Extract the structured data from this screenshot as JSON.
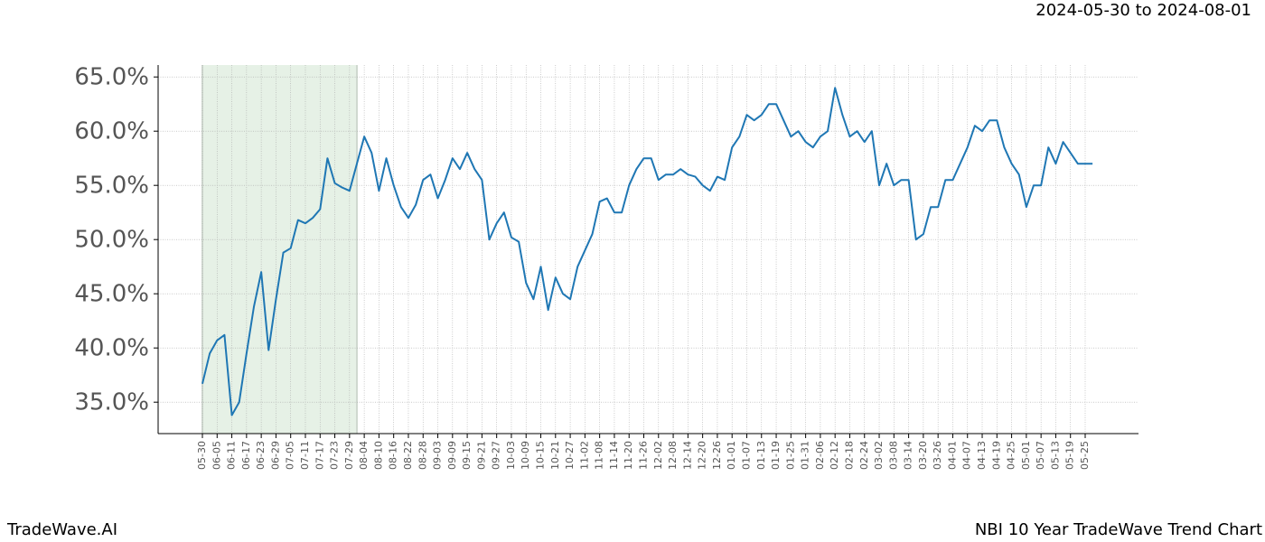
{
  "chart_data": {
    "type": "line",
    "date_range": "2024-05-30 to 2024-08-01",
    "brand": "TradeWave.AI",
    "title": "NBI 10 Year TradeWave Trend Chart",
    "x": [
      "05-30",
      "06-02",
      "06-05",
      "06-08",
      "06-11",
      "06-14",
      "06-17",
      "06-20",
      "06-23",
      "06-26",
      "06-29",
      "07-02",
      "07-05",
      "07-08",
      "07-11",
      "07-14",
      "07-17",
      "07-20",
      "07-23",
      "07-26",
      "07-29",
      "08-01",
      "08-04",
      "08-07",
      "08-10",
      "08-13",
      "08-16",
      "08-19",
      "08-22",
      "08-25",
      "08-28",
      "08-31",
      "09-03",
      "09-06",
      "09-09",
      "09-12",
      "09-15",
      "09-18",
      "09-21",
      "09-24",
      "09-27",
      "09-30",
      "10-03",
      "10-06",
      "10-09",
      "10-12",
      "10-15",
      "10-18",
      "10-21",
      "10-24",
      "10-27",
      "10-30",
      "11-02",
      "11-05",
      "11-08",
      "11-11",
      "11-14",
      "11-17",
      "11-20",
      "11-23",
      "11-26",
      "11-29",
      "12-02",
      "12-05",
      "12-08",
      "12-11",
      "12-14",
      "12-17",
      "12-20",
      "12-23",
      "12-26",
      "12-29",
      "01-01",
      "01-04",
      "01-07",
      "01-10",
      "01-13",
      "01-16",
      "01-19",
      "01-22",
      "01-25",
      "01-28",
      "01-31",
      "02-03",
      "02-06",
      "02-09",
      "02-12",
      "02-15",
      "02-18",
      "02-21",
      "02-24",
      "02-27",
      "03-02",
      "03-05",
      "03-08",
      "03-11",
      "03-14",
      "03-17",
      "03-20",
      "03-23",
      "03-26",
      "03-29",
      "04-01",
      "04-04",
      "04-07",
      "04-10",
      "04-13",
      "04-16",
      "04-19",
      "04-22",
      "04-25",
      "04-28",
      "05-01",
      "05-04",
      "05-07",
      "05-10",
      "05-13",
      "05-16",
      "05-19",
      "05-22",
      "05-25",
      "05-28"
    ],
    "series": [
      {
        "color": "#1f77b4",
        "values": [
          36.7,
          39.5,
          40.7,
          41.2,
          33.8,
          35.0,
          39.5,
          43.8,
          47.0,
          39.8,
          44.5,
          48.8,
          49.2,
          51.8,
          51.5,
          52.0,
          52.8,
          57.5,
          55.2,
          54.8,
          54.5,
          57.0,
          59.5,
          58.0,
          54.5,
          57.5,
          55.0,
          53.0,
          52.0,
          53.2,
          55.5,
          56.0,
          53.8,
          55.5,
          57.5,
          56.5,
          58.0,
          56.5,
          55.5,
          50.0,
          51.5,
          52.5,
          50.2,
          49.8,
          46.0,
          44.5,
          47.5,
          43.5,
          46.5,
          45.0,
          44.5,
          47.5,
          49.0,
          50.5,
          53.5,
          53.8,
          52.5,
          52.5,
          55.0,
          56.5,
          57.5,
          57.5,
          55.5,
          56.0,
          56.0,
          56.5,
          56.0,
          55.8,
          55.0,
          54.5,
          55.8,
          55.5,
          58.5,
          59.5,
          61.5,
          61.0,
          61.5,
          62.5,
          62.5,
          61.0,
          59.5,
          60.0,
          59.0,
          58.5,
          59.5,
          60.0,
          64.0,
          61.5,
          59.5,
          60.0,
          59.0,
          60.0,
          55.0,
          57.0,
          55.0,
          55.5,
          55.5,
          50.0,
          50.5,
          53.0,
          53.0,
          55.5,
          55.5,
          57.0,
          58.5,
          60.5,
          60.0,
          61.0,
          61.0,
          58.5,
          57.0,
          56.0,
          53.0,
          55.0,
          55.0,
          58.5,
          57.0,
          59.0,
          58.0,
          57.0,
          57.0,
          57.0
        ]
      }
    ],
    "highlight": {
      "from": "05-30",
      "to": "08-01",
      "color": "#e6f1e6"
    },
    "xticks": [
      "05-30",
      "06-05",
      "06-11",
      "06-17",
      "06-23",
      "06-29",
      "07-05",
      "07-11",
      "07-17",
      "07-23",
      "07-29",
      "08-04",
      "08-10",
      "08-16",
      "08-22",
      "08-28",
      "09-03",
      "09-09",
      "09-15",
      "09-21",
      "09-27",
      "10-03",
      "10-09",
      "10-15",
      "10-21",
      "10-27",
      "11-02",
      "11-08",
      "11-14",
      "11-20",
      "11-26",
      "12-02",
      "12-08",
      "12-14",
      "12-20",
      "12-26",
      "01-01",
      "01-07",
      "01-13",
      "01-19",
      "01-25",
      "01-31",
      "02-06",
      "02-12",
      "02-18",
      "02-24",
      "03-02",
      "03-08",
      "03-14",
      "03-20",
      "03-26",
      "04-01",
      "04-07",
      "04-13",
      "04-19",
      "04-25",
      "05-01",
      "05-07",
      "05-13",
      "05-19",
      "05-25"
    ],
    "ylim": [
      32.1,
      66.1
    ],
    "yticks": [
      {
        "value": 35,
        "label": "35.0%"
      },
      {
        "value": 40,
        "label": "40.0%"
      },
      {
        "value": 45,
        "label": "45.0%"
      },
      {
        "value": 50,
        "label": "50.0%"
      },
      {
        "value": 55,
        "label": "55.0%"
      },
      {
        "value": 60,
        "label": "60.0%"
      },
      {
        "value": 65,
        "label": "65.0%"
      }
    ],
    "grid": true
  }
}
